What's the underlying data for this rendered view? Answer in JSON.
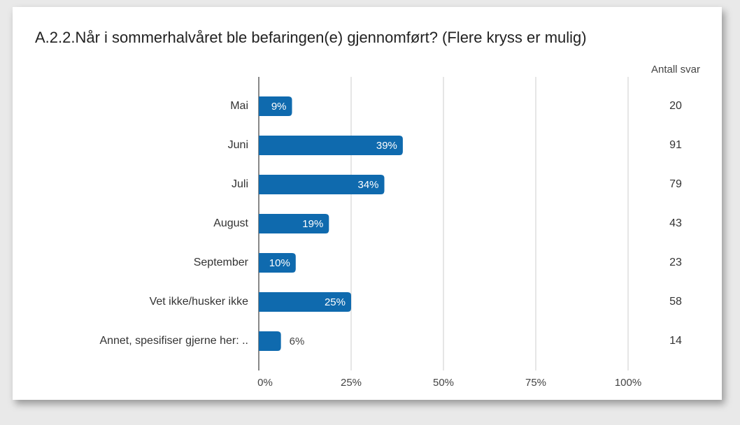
{
  "chart_data": {
    "type": "barh",
    "title": "A.2.2.Når i sommerhalvåret ble befaringen(e) gjennomført?  (Flere kryss er mulig)",
    "categories": [
      "Mai",
      "Juni",
      "Juli",
      "August",
      "September",
      "Vet ikke/husker ikke",
      "Annet, spesifiser gjerne her: .."
    ],
    "values": [
      9,
      39,
      34,
      19,
      10,
      25,
      6
    ],
    "value_labels": [
      "9%",
      "39%",
      "34%",
      "19%",
      "10%",
      "25%",
      "6%"
    ],
    "color": "#0f6aae",
    "count_header": "Antall svar",
    "counts": [
      20,
      91,
      79,
      43,
      23,
      58,
      14
    ],
    "xlim": [
      0,
      100
    ],
    "xticks": [
      {
        "value": 0,
        "label": "0%"
      },
      {
        "value": 25,
        "label": "25%"
      },
      {
        "value": 50,
        "label": "50%"
      },
      {
        "value": 75,
        "label": "75%"
      },
      {
        "value": 100,
        "label": "100%"
      }
    ],
    "grid": true
  }
}
